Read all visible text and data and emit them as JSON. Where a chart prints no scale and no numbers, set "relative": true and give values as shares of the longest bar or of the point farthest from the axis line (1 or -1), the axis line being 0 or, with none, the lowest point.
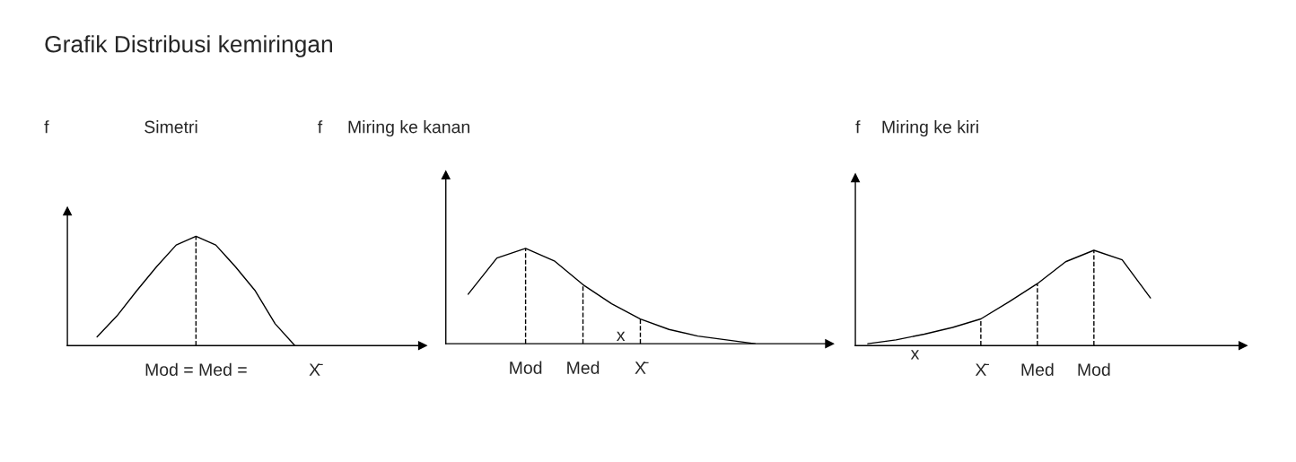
{
  "chart_data": [
    {
      "type": "line",
      "title": "Simetri",
      "ylabel": "f",
      "relative": true,
      "tick_labels": "x",
      "marker": "none",
      "line_style": "solid",
      "annotations": [
        "Grafik Distribusi kemiringan"
      ],
      "categories": [
        null,
        null,
        null,
        null,
        null,
        "Mod = Med =",
        null,
        null,
        null,
        null,
        null,
        "X̄"
      ],
      "series": [
        {
          "color": "#000000",
          "values": [
            0.08,
            0.27,
            0.5,
            0.72,
            0.92,
            1,
            0.92,
            0.72,
            0.5,
            0.2,
            0,
            null
          ]
        }
      ],
      "ref_lines": [
        {
          "axis": "x",
          "value": "Mod = Med =",
          "line_style": "dashed",
          "color": "#000000"
        }
      ]
    },
    {
      "type": "line",
      "title": "Miring ke kanan",
      "ylabel": "f",
      "relative": true,
      "tick_labels": "x",
      "marker": "none",
      "line_style": "solid",
      "annotations": [
        "x"
      ],
      "categories": [
        null,
        null,
        "Mod",
        null,
        "Med",
        null,
        "X̄",
        null,
        null,
        null,
        null
      ],
      "series": [
        {
          "color": "#000000",
          "values": [
            0.52,
            0.9,
            1,
            0.87,
            0.62,
            0.42,
            0.26,
            0.15,
            0.08,
            0.04,
            0
          ]
        }
      ],
      "ref_lines": [
        {
          "axis": "x",
          "value": "Mod",
          "line_style": "dashed",
          "color": "#000000"
        },
        {
          "axis": "x",
          "value": "Med",
          "line_style": "dashed",
          "color": "#000000"
        },
        {
          "axis": "x",
          "value": "X̄",
          "line_style": "dashed",
          "color": "#000000"
        }
      ]
    },
    {
      "type": "line",
      "title": "Miring ke kiri",
      "ylabel": "f",
      "relative": true,
      "tick_labels": "x",
      "marker": "none",
      "line_style": "solid",
      "annotations": [
        "x"
      ],
      "categories": [
        null,
        null,
        null,
        null,
        "X̄",
        null,
        "Med",
        null,
        "Mod",
        null,
        null
      ],
      "series": [
        {
          "color": "#000000",
          "values": [
            0.02,
            0.06,
            0.12,
            0.19,
            0.28,
            0.46,
            0.65,
            0.88,
            1,
            0.9,
            0.5
          ]
        }
      ],
      "ref_lines": [
        {
          "axis": "x",
          "value": "X̄",
          "line_style": "dashed",
          "color": "#000000"
        },
        {
          "axis": "x",
          "value": "Med",
          "line_style": "dashed",
          "color": "#000000"
        },
        {
          "axis": "x",
          "value": "Mod",
          "line_style": "dashed",
          "color": "#000000"
        }
      ]
    }
  ]
}
